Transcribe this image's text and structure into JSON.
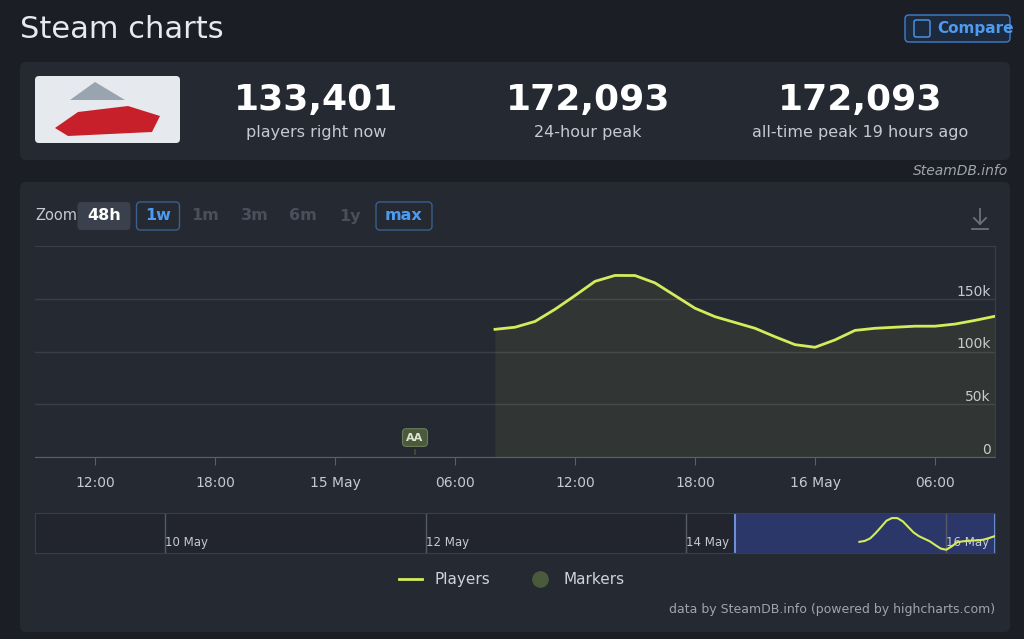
{
  "header": {
    "title": "Steam charts",
    "button": "Compare"
  },
  "stats": [
    {
      "value": "133,401",
      "label": "players right now"
    },
    {
      "value": "172,093",
      "label": "24-hour peak"
    },
    {
      "value": "172,093",
      "label": "all-time peak 19 hours ago"
    }
  ],
  "source": "SteamDB.info",
  "zoom": {
    "label": "Zoom",
    "buttons": [
      "48h",
      "1w",
      "1m",
      "3m",
      "6m",
      "1y",
      "max"
    ]
  },
  "chart_data": {
    "type": "line",
    "x": [
      32,
      33,
      34,
      35,
      36,
      37,
      38,
      39,
      40,
      41,
      42,
      43,
      44,
      45,
      46,
      47,
      48,
      49,
      50,
      51,
      52,
      53,
      54,
      55,
      56,
      57
    ],
    "series": [
      {
        "name": "Players",
        "color": "#d4ec5c",
        "values": [
          121000,
          123000,
          128500,
          140000,
          153000,
          166500,
          172093,
          172000,
          165000,
          153000,
          141000,
          133000,
          127500,
          122000,
          114000,
          106500,
          104000,
          111000,
          120000,
          122000,
          123000,
          124000,
          124000,
          126000,
          129500,
          133401
        ]
      }
    ],
    "marker_series": {
      "name": "Markers",
      "color": "#4b5a3d",
      "points": [
        {
          "x": 28,
          "label": "AA"
        }
      ]
    },
    "xlim": [
      9,
      57
    ],
    "xticks": [
      {
        "value": 12,
        "label": "12:00"
      },
      {
        "value": 18,
        "label": "18:00"
      },
      {
        "value": 24,
        "label": "15 May"
      },
      {
        "value": 30,
        "label": "06:00"
      },
      {
        "value": 36,
        "label": "12:00"
      },
      {
        "value": 42,
        "label": "18:00"
      },
      {
        "value": 48,
        "label": "16 May"
      },
      {
        "value": 54,
        "label": "06:00"
      }
    ],
    "ylim": [
      0,
      200000
    ],
    "yticks": [
      0,
      {
        "value": 50000,
        "label": "50k"
      },
      {
        "value": 100000,
        "label": "100k"
      },
      {
        "value": 150000,
        "label": "150k"
      }
    ],
    "grid": true,
    "legend": "lower center"
  },
  "navigator": {
    "type": "line",
    "xlim": [
      -120,
      57
    ],
    "ylim": [
      97000,
      183000
    ],
    "xticks": [
      {
        "value": -96,
        "label": "10 May"
      },
      {
        "value": -48,
        "label": "12 May"
      },
      {
        "value": 0,
        "label": "14 May"
      },
      {
        "value": 48,
        "label": "16 May"
      }
    ],
    "tick_labels": "x"
  },
  "credit": "data by SteamDB.info (powered by highcharts.com)"
}
